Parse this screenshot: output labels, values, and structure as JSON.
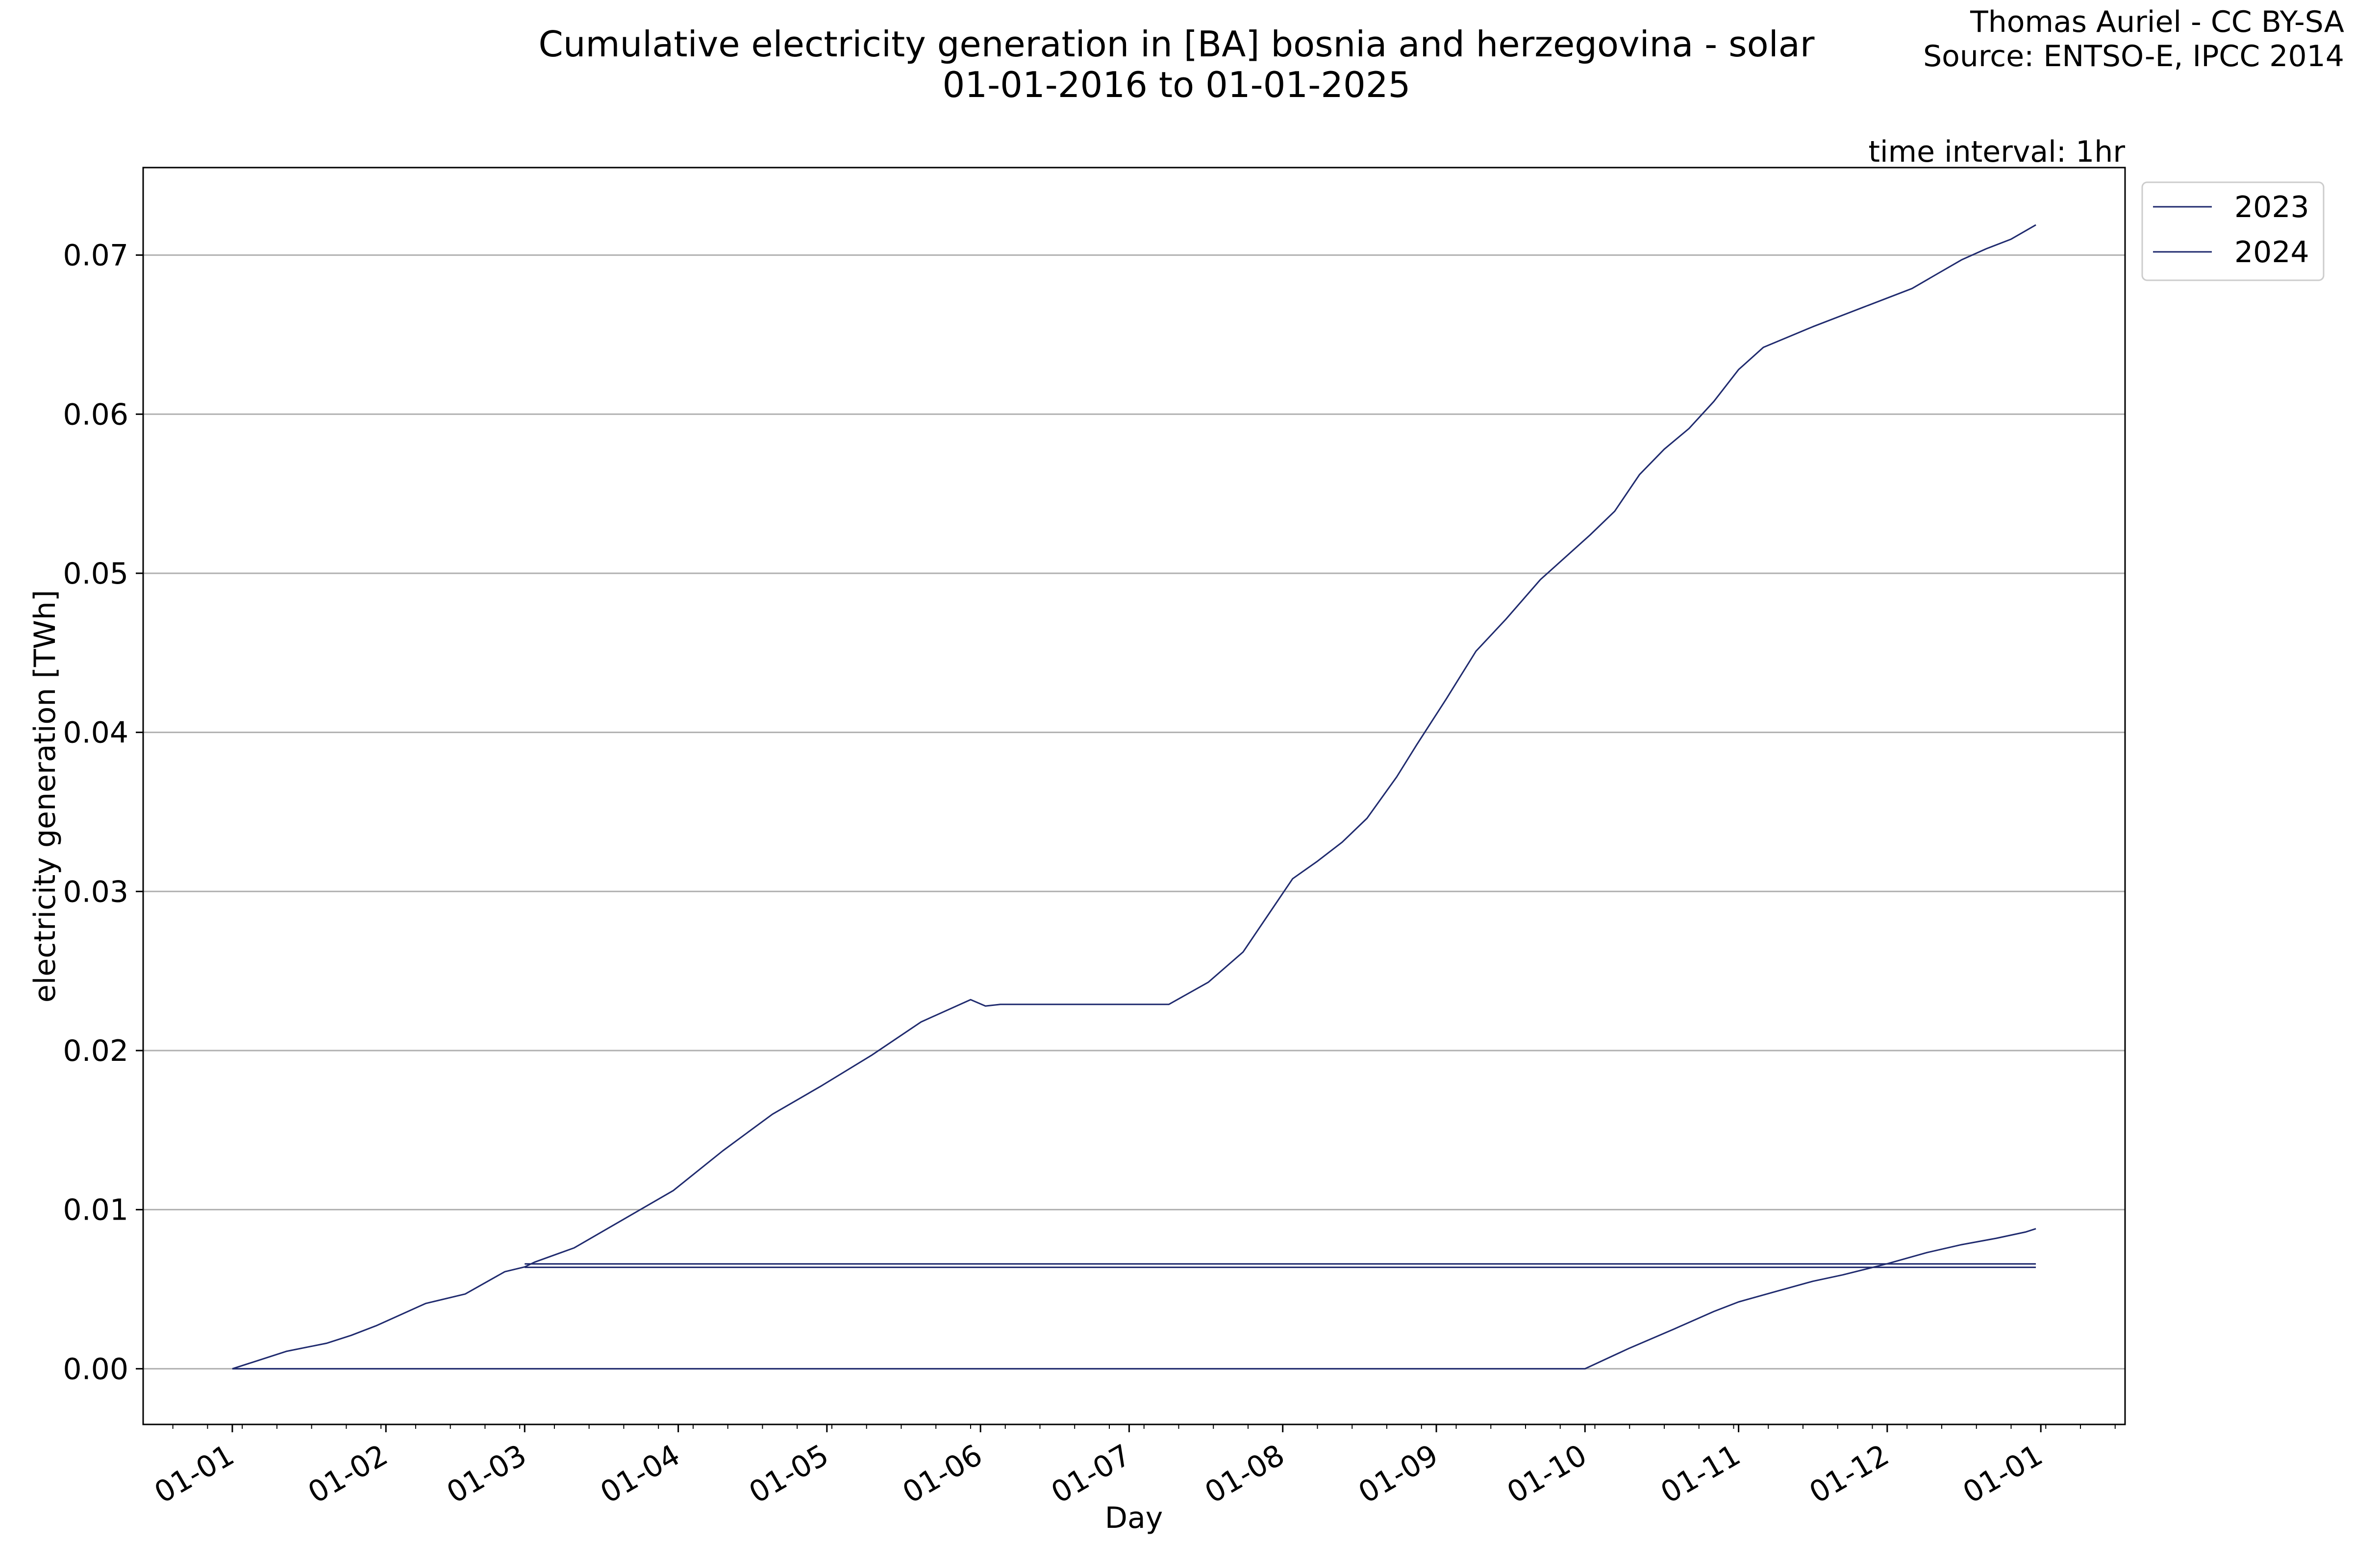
{
  "title_line1": "Cumulative electricity generation in [BA] bosnia and herzegovina - solar",
  "title_line2": "01-01-2016 to 01-01-2025",
  "credit_line1": "Thomas Auriel - CC BY-SA",
  "credit_line2": "Source: ENTSO-E, IPCC 2014",
  "interval_note": "time interval: 1hr",
  "chart_data": {
    "type": "line",
    "xlabel": "Day",
    "ylabel": "electricity generation [TWh]",
    "x_tick_labels": [
      "01-01",
      "01-02",
      "01-03",
      "01-04",
      "01-05",
      "01-06",
      "01-07",
      "01-08",
      "01-09",
      "01-10",
      "01-11",
      "01-12",
      "01-01"
    ],
    "x_tick_days": [
      1,
      32,
      60,
      91,
      121,
      152,
      182,
      213,
      244,
      274,
      305,
      335,
      366
    ],
    "xlim": [
      -17,
      383
    ],
    "ylim": [
      -0.0035,
      0.0755
    ],
    "y_ticks": [
      0.0,
      0.01,
      0.02,
      0.03,
      0.04,
      0.05,
      0.06,
      0.07
    ],
    "y_tick_labels": [
      "0.00",
      "0.01",
      "0.02",
      "0.03",
      "0.04",
      "0.05",
      "0.06",
      "0.07"
    ],
    "grid": "horizontal",
    "legend": "outside-top-right",
    "series": [
      {
        "name": "2023",
        "color": "#1f2a6e",
        "x": [
          1,
          60,
          274,
          283,
          292,
          300,
          305,
          313,
          320,
          326,
          335,
          343,
          350,
          357,
          363,
          365
        ],
        "y": [
          0.0,
          0.0,
          0.0,
          0.0013,
          0.0025,
          0.0036,
          0.0042,
          0.0049,
          0.0055,
          0.0059,
          0.0066,
          0.0073,
          0.0078,
          0.0082,
          0.0086,
          0.0088
        ]
      },
      {
        "name": "2024",
        "color": "#1f2a6e",
        "x": [
          1,
          5,
          12,
          20,
          25,
          30,
          40,
          48,
          56,
          60,
          62,
          70,
          80,
          90,
          100,
          110,
          120,
          130,
          140,
          150,
          153,
          156,
          160,
          170,
          190,
          198,
          205,
          210,
          215,
          220,
          225,
          230,
          236,
          240,
          246,
          252,
          258,
          265,
          275,
          280,
          285,
          290,
          295,
          300,
          305,
          310,
          320,
          330,
          340,
          345,
          350,
          355,
          360,
          365
        ],
        "y": [
          0.0,
          0.0004,
          0.0011,
          0.0016,
          0.0021,
          0.0027,
          0.0041,
          0.0047,
          0.0061,
          0.0064,
          0.0067,
          0.0076,
          0.0094,
          0.0112,
          0.0137,
          0.016,
          0.0178,
          0.0197,
          0.0218,
          0.0232,
          0.0228,
          0.0229,
          0.0229,
          0.0229,
          0.0229,
          0.0243,
          0.0262,
          0.0285,
          0.0308,
          0.0319,
          0.0331,
          0.0346,
          0.0372,
          0.0392,
          0.0421,
          0.0451,
          0.0471,
          0.0496,
          0.0524,
          0.0539,
          0.0562,
          0.0578,
          0.0591,
          0.0608,
          0.0628,
          0.0642,
          0.0655,
          0.0667,
          0.0679,
          0.0688,
          0.0697,
          0.0704,
          0.071,
          0.0719
        ]
      }
    ],
    "baseline_segment": {
      "x": [
        60,
        365
      ],
      "y": 0.0065
    }
  }
}
